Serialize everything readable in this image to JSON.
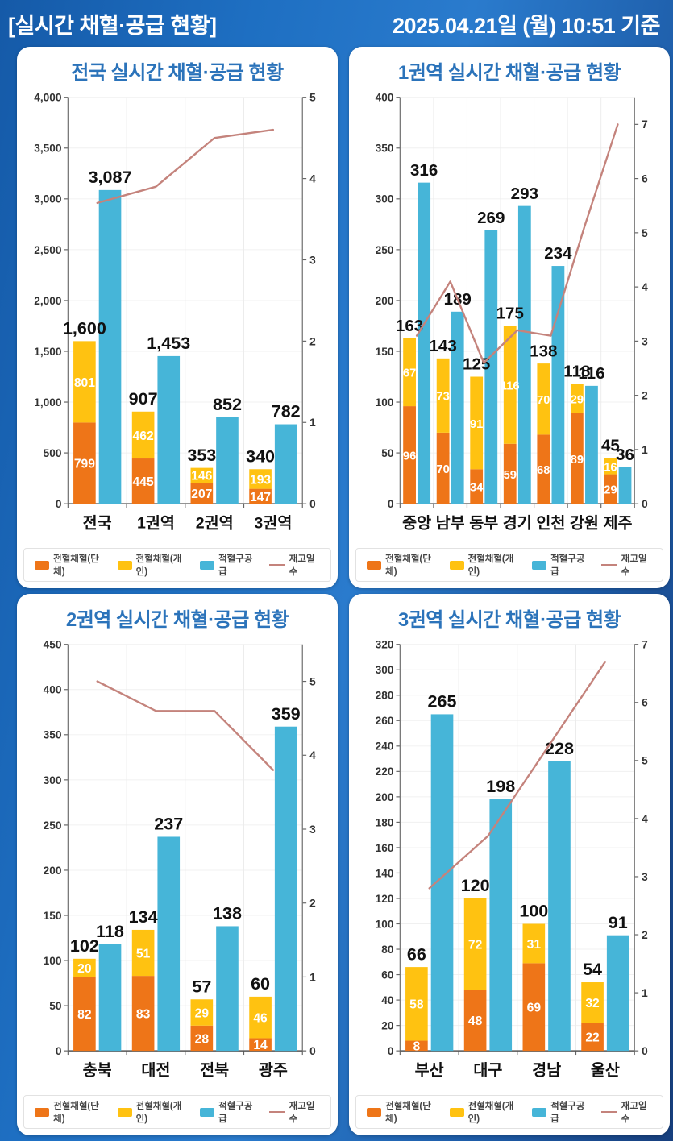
{
  "header": {
    "title": "[실시간 채혈·공급 현황]",
    "timestamp": "2025.04.21일 (월) 10:51 기준"
  },
  "colors": {
    "orange": "#EE7518",
    "yellow": "#FFC211",
    "blue": "#46B5D8",
    "line": "#C4837C",
    "title_blue": "#2B73BA",
    "header_text": "#FFFFFF",
    "panel_bg": "#FFFFFF",
    "page_bg": "#1E6FC2",
    "bar_label_in": "#FFFFFF",
    "bar_label_out": "#111111"
  },
  "legend": {
    "items": [
      {
        "label": "전혈채혈(단체)",
        "swatch": "box",
        "color_key": "orange"
      },
      {
        "label": "전혈채혈(개인)",
        "swatch": "box",
        "color_key": "yellow"
      },
      {
        "label": "적혈구공급",
        "swatch": "box",
        "color_key": "blue"
      },
      {
        "label": "재고일수",
        "swatch": "line",
        "color_key": "line"
      }
    ]
  },
  "chart_data": [
    {
      "type": "bar",
      "title": "전국 실시간 채혈·공급 현황",
      "categories": [
        "전국",
        "1권역",
        "2권역",
        "3권역"
      ],
      "series": [
        {
          "name": "전혈채혈(단체)",
          "role": "stack-bottom",
          "color_key": "orange",
          "values": [
            799,
            445,
            207,
            147
          ],
          "labels": [
            "799",
            "445",
            "207",
            "147"
          ]
        },
        {
          "name": "전혈채혈(개인)",
          "role": "stack-top",
          "color_key": "yellow",
          "values": [
            801,
            462,
            146,
            193
          ],
          "labels": [
            "801",
            "462",
            "146",
            "193"
          ]
        },
        {
          "name": "적혈구공급",
          "role": "bar",
          "color_key": "blue",
          "values": [
            3087,
            1453,
            852,
            782
          ],
          "labels": [
            "3,087",
            "1,453",
            "852",
            "782"
          ]
        },
        {
          "name": "재고일수",
          "role": "line",
          "axis": "right",
          "color_key": "line",
          "values": [
            3.7,
            3.9,
            4.5,
            4.6
          ]
        }
      ],
      "stack_total_labels": [
        "1,600",
        "907",
        "353",
        "340"
      ],
      "ylim_left": [
        0,
        4000
      ],
      "left_ticks": [
        "0",
        "500",
        "1,000",
        "1,500",
        "2,000",
        "2,500",
        "3,000",
        "3,500",
        "4,000"
      ],
      "right_axis_max": 5,
      "right_ticks": [
        "0",
        "1",
        "2",
        "3",
        "4",
        "5"
      ],
      "grid": true,
      "legend_position": "bottom"
    },
    {
      "type": "bar",
      "title": "1권역 실시간 채혈·공급 현황",
      "categories": [
        "중앙",
        "남부",
        "동부",
        "경기",
        "인천",
        "강원",
        "제주"
      ],
      "series": [
        {
          "name": "전혈채혈(단체)",
          "role": "stack-bottom",
          "color_key": "orange",
          "values": [
            96,
            70,
            34,
            59,
            68,
            89,
            29
          ],
          "labels": [
            "96",
            "70",
            "34",
            "59",
            "68",
            "89",
            "29"
          ]
        },
        {
          "name": "전혈채혈(개인)",
          "role": "stack-top",
          "color_key": "yellow",
          "values": [
            67,
            73,
            91,
            116,
            70,
            29,
            16
          ],
          "labels": [
            "67",
            "73",
            "91",
            "116",
            "70",
            "29",
            "16"
          ]
        },
        {
          "name": "적혈구공급",
          "role": "bar",
          "color_key": "blue",
          "values": [
            316,
            189,
            269,
            293,
            234,
            116,
            36
          ],
          "labels": [
            "316",
            "189",
            "269",
            "293",
            "234",
            "116",
            "36"
          ]
        },
        {
          "name": "재고일수",
          "role": "line",
          "axis": "right",
          "color_key": "line",
          "values": [
            3.1,
            4.1,
            2.6,
            3.2,
            3.1,
            5.1,
            7.0
          ]
        }
      ],
      "stack_total_labels": [
        "163",
        "143",
        "125",
        "175",
        "138",
        "118",
        "45"
      ],
      "ylim_left": [
        0,
        400
      ],
      "left_ticks": [
        "0",
        "50",
        "100",
        "150",
        "200",
        "250",
        "300",
        "350",
        "400"
      ],
      "right_axis_max": 7.5,
      "right_ticks": [
        "0",
        "1",
        "2",
        "3",
        "4",
        "5",
        "6",
        "7"
      ],
      "grid": true,
      "legend_position": "bottom"
    },
    {
      "type": "bar",
      "title": "2권역 실시간 채혈·공급 현황",
      "categories": [
        "충북",
        "대전",
        "전북",
        "광주"
      ],
      "series": [
        {
          "name": "전혈채혈(단체)",
          "role": "stack-bottom",
          "color_key": "orange",
          "values": [
            82,
            83,
            28,
            14
          ],
          "labels": [
            "82",
            "83",
            "28",
            "14"
          ]
        },
        {
          "name": "전혈채혈(개인)",
          "role": "stack-top",
          "color_key": "yellow",
          "values": [
            20,
            51,
            29,
            46
          ],
          "labels": [
            "20",
            "51",
            "29",
            "46"
          ]
        },
        {
          "name": "적혈구공급",
          "role": "bar",
          "color_key": "blue",
          "values": [
            118,
            237,
            138,
            359
          ],
          "labels": [
            "118",
            "237",
            "138",
            "359"
          ]
        },
        {
          "name": "재고일수",
          "role": "line",
          "axis": "right",
          "color_key": "line",
          "values": [
            5.0,
            4.6,
            4.6,
            3.8
          ]
        }
      ],
      "stack_total_labels": [
        "102",
        "134",
        "57",
        "60"
      ],
      "ylim_left": [
        0,
        450
      ],
      "left_ticks": [
        "0",
        "50",
        "100",
        "150",
        "200",
        "250",
        "300",
        "350",
        "400",
        "450"
      ],
      "right_axis_max": 5.5,
      "right_ticks": [
        "0",
        "1",
        "2",
        "3",
        "4",
        "5"
      ],
      "grid": true,
      "legend_position": "bottom"
    },
    {
      "type": "bar",
      "title": "3권역 실시간 채혈·공급 현황",
      "categories": [
        "부산",
        "대구",
        "경남",
        "울산"
      ],
      "series": [
        {
          "name": "전혈채혈(단체)",
          "role": "stack-bottom",
          "color_key": "orange",
          "values": [
            8,
            48,
            69,
            22
          ],
          "labels": [
            "8",
            "48",
            "69",
            "22"
          ]
        },
        {
          "name": "전혈채혈(개인)",
          "role": "stack-top",
          "color_key": "yellow",
          "values": [
            58,
            72,
            31,
            32
          ],
          "labels": [
            "58",
            "72",
            "31",
            "32"
          ]
        },
        {
          "name": "적혈구공급",
          "role": "bar",
          "color_key": "blue",
          "values": [
            265,
            198,
            228,
            91
          ],
          "labels": [
            "265",
            "198",
            "228",
            "91"
          ]
        },
        {
          "name": "재고일수",
          "role": "line",
          "axis": "right",
          "color_key": "line",
          "values": [
            2.8,
            3.7,
            5.2,
            6.7
          ]
        }
      ],
      "stack_total_labels": [
        "66",
        "120",
        "100",
        "54"
      ],
      "ylim_left": [
        0,
        320
      ],
      "left_ticks": [
        "0",
        "20",
        "40",
        "60",
        "80",
        "100",
        "120",
        "140",
        "160",
        "180",
        "200",
        "220",
        "240",
        "260",
        "280",
        "300",
        "320"
      ],
      "right_axis_max": 7,
      "right_ticks": [
        "0",
        "1",
        "2",
        "3",
        "4",
        "5",
        "6",
        "7"
      ],
      "grid": true,
      "legend_position": "bottom"
    }
  ]
}
